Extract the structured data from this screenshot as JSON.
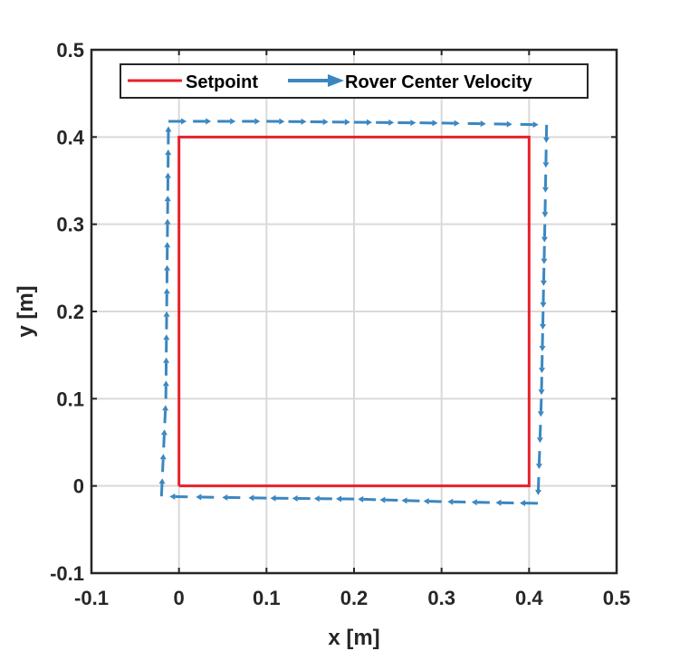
{
  "chart_data": {
    "type": "line",
    "xlabel": "x [m]",
    "ylabel": "y [m]",
    "xlim": [
      -0.1,
      0.5
    ],
    "ylim": [
      -0.1,
      0.5
    ],
    "xticks": [
      -0.1,
      0,
      0.1,
      0.2,
      0.3,
      0.4,
      0.5
    ],
    "yticks": [
      -0.1,
      0,
      0.1,
      0.2,
      0.3,
      0.4,
      0.5
    ],
    "xtick_labels": [
      "-0.1",
      "0",
      "0.1",
      "0.2",
      "0.3",
      "0.4",
      "0.5"
    ],
    "ytick_labels": [
      "-0.1",
      "0",
      "0.1",
      "0.2",
      "0.3",
      "0.4",
      "0.5"
    ],
    "grid": true,
    "legend_position": "top",
    "legend": [
      "Setpoint",
      "Rover Center Velocity"
    ],
    "series": [
      {
        "name": "Setpoint",
        "style": "solid",
        "color": "#e8202a",
        "x": [
          0,
          0.4,
          0.4,
          0,
          0
        ],
        "y": [
          0,
          0,
          0.4,
          0.4,
          0
        ]
      },
      {
        "name": "Rover Center Velocity",
        "style": "dashed-arrows",
        "color": "#3a87c0",
        "x": [
          -0.02,
          -0.015,
          -0.012,
          0.1,
          0.2,
          0.3,
          0.42,
          0.418,
          0.414,
          0.41,
          0.3,
          0.2,
          0.1,
          -0.02
        ],
        "y": [
          -0.012,
          0.1,
          0.418,
          0.418,
          0.417,
          0.416,
          0.414,
          0.3,
          0.1,
          -0.02,
          -0.018,
          -0.015,
          -0.014,
          -0.012
        ]
      }
    ]
  }
}
